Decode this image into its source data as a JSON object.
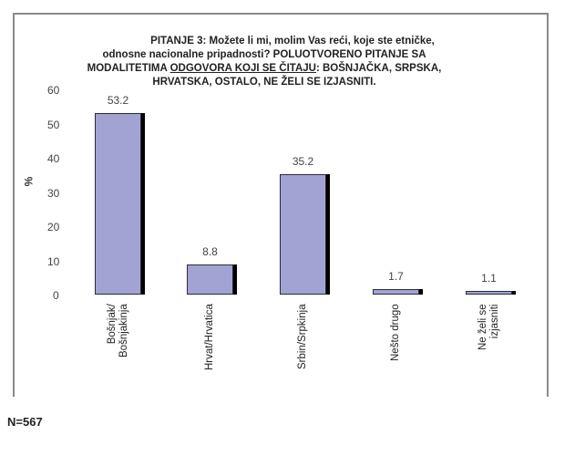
{
  "chart_data": {
    "type": "bar",
    "title": "PITANJE 3: Možete li mi, molim Vas reći, koje ste etničke, odnosne nacionalne pripadnosti? POLUOTVORENO PITANJE SA MODALITETIMA ODGOVORA KOJI SE ČITAJU: BOŠNJAČKA, SRPSKA, HRVATSKA, OSTALO, NE ŽELI SE IZJASNITI.",
    "title_lines": {
      "l1": "PITANJE 3: Možete li mi, molim Vas reći, koje ste etničke,",
      "l2": "odnosne nacionalne pripadnosti? POLUOTVORENO PITANJE SA",
      "l3_pre": "MODALITETIMA ",
      "l3_underlined": "ODGOVORA KOJI SE ČITAJU",
      "l3_post": ": BOŠNJAČKA, SRPSKA,",
      "l4": "HRVATSKA, OSTALO, NE ŽELI SE IZJASNITI."
    },
    "xlabel": "",
    "ylabel": "%",
    "ylim": [
      0,
      60
    ],
    "yticks": [
      "60",
      "50",
      "40",
      "30",
      "20",
      "10",
      "0"
    ],
    "grid": false,
    "legend": null,
    "categories": [
      "Bošnjak/ Bošnjakinja",
      "Hrvat/Hrvatica",
      "Srbin/Srpkinja",
      "Nešto drugo",
      "Ne želi se izjasniti"
    ],
    "category_lines": [
      [
        "Bošnjak/",
        "Bošnjakinja"
      ],
      [
        "Hrvat/Hrvatica"
      ],
      [
        "Srbin/Srpkinja"
      ],
      [
        "Nešto drugo"
      ],
      [
        "Ne želi se",
        "izjasniti"
      ]
    ],
    "values": [
      53.2,
      8.8,
      35.2,
      1.7,
      1.1
    ],
    "value_labels": [
      "53.2",
      "8.8",
      "35.2",
      "1.7",
      "1.1"
    ],
    "bar_color": "#a3a3d3",
    "shadow_color": "#000000"
  },
  "footer": {
    "sample_size": "N=567"
  }
}
